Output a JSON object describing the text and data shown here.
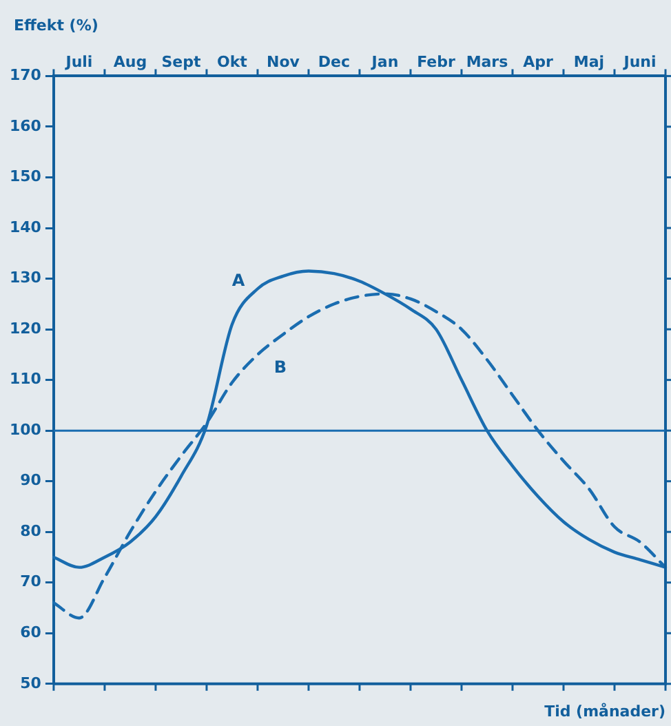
{
  "chart_data": {
    "type": "line",
    "xlabel": "Tid (månader)",
    "ylabel": "Effekt (%)",
    "categories": [
      null,
      "Juli",
      null,
      "Aug",
      null,
      "Sept",
      null,
      "Okt",
      null,
      "Nov",
      null,
      "Dec",
      null,
      "Jan",
      null,
      "Febr",
      null,
      "Mars",
      null,
      "Apr",
      null,
      "Maj",
      null,
      "Juni",
      null
    ],
    "ylim": [
      50,
      170
    ],
    "yticks": [
      50,
      60,
      70,
      80,
      90,
      100,
      110,
      120,
      130,
      140,
      150,
      160,
      170
    ],
    "grid": false,
    "legend": false,
    "marker": "none",
    "ref_lines": [
      {
        "axis": "y",
        "value": 100,
        "color": "#1a6db0",
        "line_style": "solid"
      }
    ],
    "series": [
      {
        "name": "A",
        "color": "#1a6db0",
        "line_style": "solid",
        "values": [
          75,
          73,
          75,
          78,
          83,
          91,
          101,
          121,
          128,
          130.5,
          131.5,
          131,
          129.5,
          127,
          124,
          120,
          110,
          100,
          93,
          87,
          82,
          78.5,
          76,
          74.5,
          73
        ]
      },
      {
        "name": "B",
        "color": "#1a6db0",
        "line_style": "dashed",
        "values": [
          66,
          63,
          71,
          80,
          88,
          95,
          101.5,
          109.5,
          115,
          119,
          122.5,
          125,
          126.5,
          127,
          126,
          123.5,
          120,
          114,
          107,
          100,
          94,
          88.5,
          81,
          78,
          73
        ]
      }
    ]
  }
}
